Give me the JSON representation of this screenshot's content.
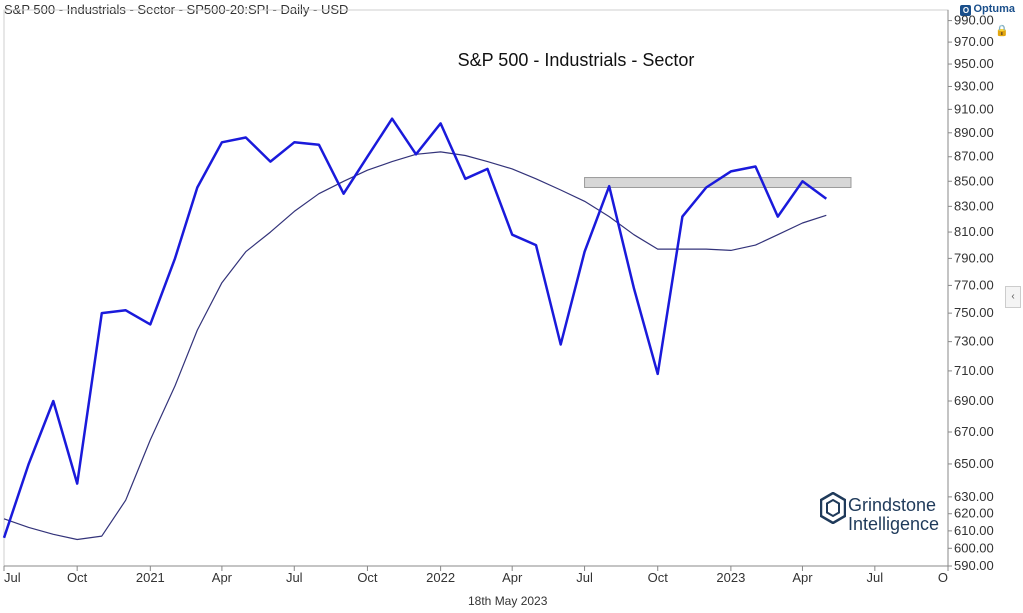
{
  "header": {
    "title": "S&P 500 - Industrials - Sector - SP500-20:SPI - Daily - USD"
  },
  "brand": {
    "name": "Optuma",
    "logo_glyph": "O"
  },
  "icons": {
    "lock": "lock-icon",
    "collapse": "chevron-left-icon"
  },
  "footer": {
    "date": "18th May 2023"
  },
  "watermark": {
    "line1": "Grindstone",
    "line2": "Intelligence"
  },
  "chart_data": {
    "type": "line",
    "title": "S&P 500 - Industrials - Sector",
    "scale": "log",
    "ylim": [
      590,
      1000
    ],
    "y_ticks": [
      590,
      600,
      610,
      620,
      630,
      650,
      670,
      690,
      710,
      730,
      750,
      770,
      790,
      810,
      830,
      850,
      870,
      890,
      910,
      930,
      950,
      970,
      990
    ],
    "y_tick_labels": [
      "590.00",
      "600.00",
      "610.00",
      "620.00",
      "630.00",
      "650.00",
      "670.00",
      "690.00",
      "710.00",
      "730.00",
      "750.00",
      "770.00",
      "790.00",
      "810.00",
      "830.00",
      "850.00",
      "870.00",
      "890.00",
      "910.00",
      "930.00",
      "950.00",
      "970.00",
      "990.00"
    ],
    "x_tick_labels": [
      "Jul",
      "Oct",
      "2021",
      "Apr",
      "Jul",
      "Oct",
      "2022",
      "Apr",
      "Jul",
      "Oct",
      "2023",
      "Apr",
      "Jul",
      "O"
    ],
    "x_tick_dates": [
      "2020-07",
      "2020-10",
      "2021-01",
      "2021-04",
      "2021-07",
      "2021-10",
      "2022-01",
      "2022-04",
      "2022-07",
      "2022-10",
      "2023-01",
      "2023-04",
      "2023-07",
      "2023-10"
    ],
    "series": [
      {
        "role": "price",
        "color": "#1a1adb",
        "x": [
          "2020-07",
          "2020-08",
          "2020-09",
          "2020-10",
          "2020-11",
          "2020-12",
          "2021-01",
          "2021-02",
          "2021-03",
          "2021-04",
          "2021-05",
          "2021-06",
          "2021-07",
          "2021-08",
          "2021-09",
          "2021-10",
          "2021-11",
          "2021-12",
          "2022-01",
          "2022-02",
          "2022-03",
          "2022-04",
          "2022-05",
          "2022-06",
          "2022-07",
          "2022-08",
          "2022-09",
          "2022-10",
          "2022-11",
          "2022-12",
          "2023-01",
          "2023-02",
          "2023-03",
          "2023-04",
          "2023-05"
        ],
        "values": [
          606,
          650,
          690,
          638,
          750,
          752,
          742,
          790,
          845,
          882,
          886,
          866,
          882,
          880,
          840,
          870,
          902,
          872,
          898,
          852,
          860,
          808,
          800,
          728,
          795,
          846,
          768,
          708,
          822,
          845,
          858,
          862,
          822,
          850,
          836
        ]
      },
      {
        "role": "moving-average",
        "color": "#33337a",
        "x": [
          "2020-07",
          "2020-08",
          "2020-09",
          "2020-10",
          "2020-11",
          "2020-12",
          "2021-01",
          "2021-02",
          "2021-03",
          "2021-04",
          "2021-05",
          "2021-06",
          "2021-07",
          "2021-08",
          "2021-09",
          "2021-10",
          "2021-11",
          "2021-12",
          "2022-01",
          "2022-02",
          "2022-03",
          "2022-04",
          "2022-05",
          "2022-06",
          "2022-07",
          "2022-08",
          "2022-09",
          "2022-10",
          "2022-11",
          "2022-12",
          "2023-01",
          "2023-02",
          "2023-03",
          "2023-04",
          "2023-05"
        ],
        "values": [
          617,
          612,
          608,
          605,
          607,
          628,
          665,
          700,
          738,
          772,
          795,
          810,
          826,
          840,
          850,
          859,
          866,
          872,
          874,
          871,
          866,
          860,
          852,
          843,
          834,
          822,
          808,
          797,
          797,
          797,
          796,
          800,
          808,
          817,
          823
        ]
      }
    ],
    "annotations": [
      {
        "type": "horizontal-band",
        "x_start": "2022-07",
        "x_end": "2023-06",
        "y_low": 845,
        "y_high": 853,
        "color": "#d7d7d7"
      }
    ]
  }
}
